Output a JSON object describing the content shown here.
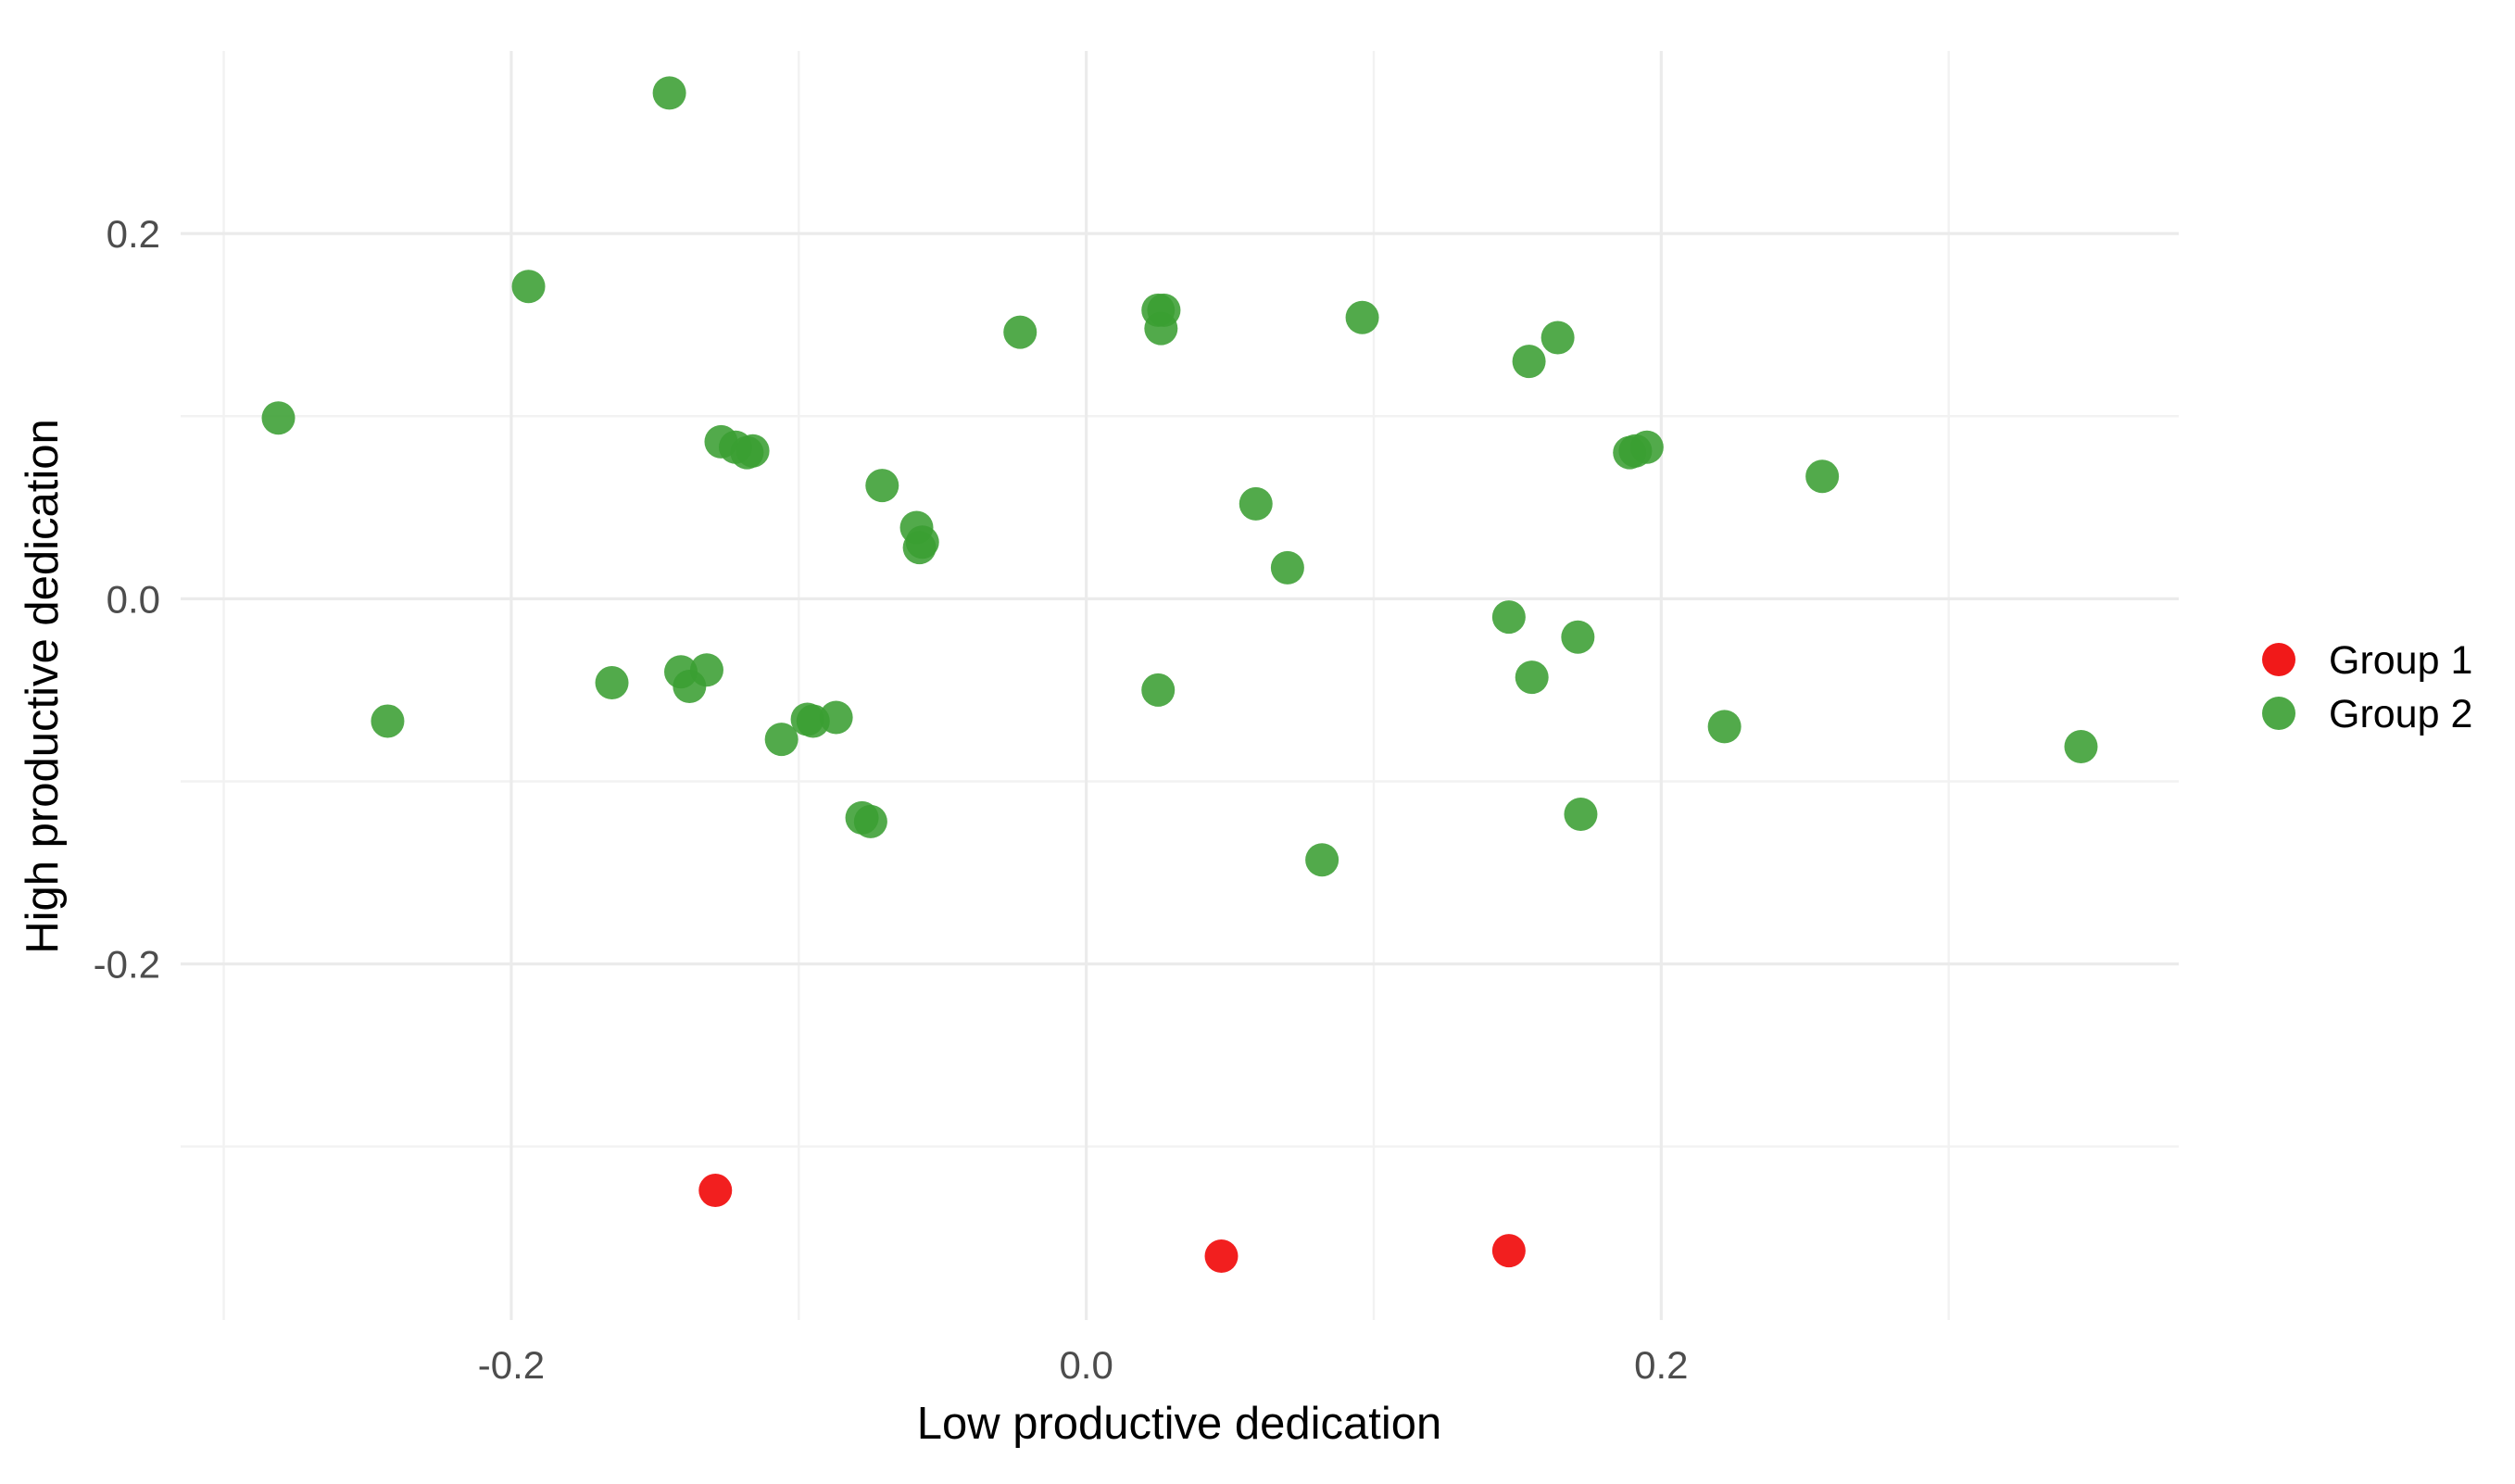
{
  "chart_data": {
    "type": "scatter",
    "xlabel": "Low productive dedication",
    "ylabel": "High productive dedication",
    "xlim": [
      -0.315,
      0.38
    ],
    "ylim": [
      -0.395,
      0.3
    ],
    "x_ticks": [
      -0.2,
      0.0,
      0.2
    ],
    "x_tick_labels": [
      "-0.2",
      "0.0",
      "0.2"
    ],
    "y_ticks": [
      -0.2,
      0.0,
      0.2
    ],
    "y_tick_labels": [
      "-0.2",
      "0.0",
      "0.2"
    ],
    "x_minor_ticks": [
      -0.3,
      -0.1,
      0.1,
      0.3
    ],
    "y_minor_ticks": [
      -0.3,
      -0.1,
      0.1
    ],
    "grid": true,
    "legend_position": "right",
    "colors": {
      "Group 1": "#f00000",
      "Group 2": "#3a9e32"
    },
    "series": [
      {
        "name": "Group 1",
        "color": "#f00000",
        "points": [
          {
            "x": -0.129,
            "y": -0.324
          },
          {
            "x": 0.047,
            "y": -0.36
          },
          {
            "x": 0.147,
            "y": -0.357
          }
        ]
      },
      {
        "name": "Group 2",
        "color": "#3a9e32",
        "points": [
          {
            "x": -0.281,
            "y": 0.099
          },
          {
            "x": -0.243,
            "y": -0.067
          },
          {
            "x": -0.194,
            "y": 0.171
          },
          {
            "x": -0.145,
            "y": 0.277
          },
          {
            "x": -0.165,
            "y": -0.046
          },
          {
            "x": -0.141,
            "y": -0.04
          },
          {
            "x": -0.138,
            "y": -0.048
          },
          {
            "x": -0.132,
            "y": -0.039
          },
          {
            "x": -0.127,
            "y": 0.086
          },
          {
            "x": -0.122,
            "y": 0.083
          },
          {
            "x": -0.118,
            "y": 0.08
          },
          {
            "x": -0.116,
            "y": 0.081
          },
          {
            "x": -0.106,
            "y": -0.077
          },
          {
            "x": -0.097,
            "y": -0.066
          },
          {
            "x": -0.095,
            "y": -0.067
          },
          {
            "x": -0.087,
            "y": -0.065
          },
          {
            "x": -0.078,
            "y": -0.12
          },
          {
            "x": -0.075,
            "y": -0.122
          },
          {
            "x": -0.071,
            "y": 0.062
          },
          {
            "x": -0.059,
            "y": 0.039
          },
          {
            "x": -0.058,
            "y": 0.028
          },
          {
            "x": -0.057,
            "y": 0.031
          },
          {
            "x": -0.023,
            "y": 0.146
          },
          {
            "x": 0.025,
            "y": 0.158
          },
          {
            "x": 0.026,
            "y": 0.148
          },
          {
            "x": 0.027,
            "y": 0.158
          },
          {
            "x": 0.025,
            "y": -0.05
          },
          {
            "x": 0.059,
            "y": 0.052
          },
          {
            "x": 0.07,
            "y": 0.017
          },
          {
            "x": 0.082,
            "y": -0.143
          },
          {
            "x": 0.096,
            "y": 0.154
          },
          {
            "x": 0.147,
            "y": -0.01
          },
          {
            "x": 0.154,
            "y": 0.13
          },
          {
            "x": 0.155,
            "y": -0.043
          },
          {
            "x": 0.164,
            "y": 0.143
          },
          {
            "x": 0.171,
            "y": -0.021
          },
          {
            "x": 0.172,
            "y": -0.118
          },
          {
            "x": 0.189,
            "y": 0.08
          },
          {
            "x": 0.191,
            "y": 0.081
          },
          {
            "x": 0.195,
            "y": 0.083
          },
          {
            "x": 0.222,
            "y": -0.07
          },
          {
            "x": 0.256,
            "y": 0.067
          },
          {
            "x": 0.346,
            "y": -0.081
          }
        ]
      }
    ]
  }
}
